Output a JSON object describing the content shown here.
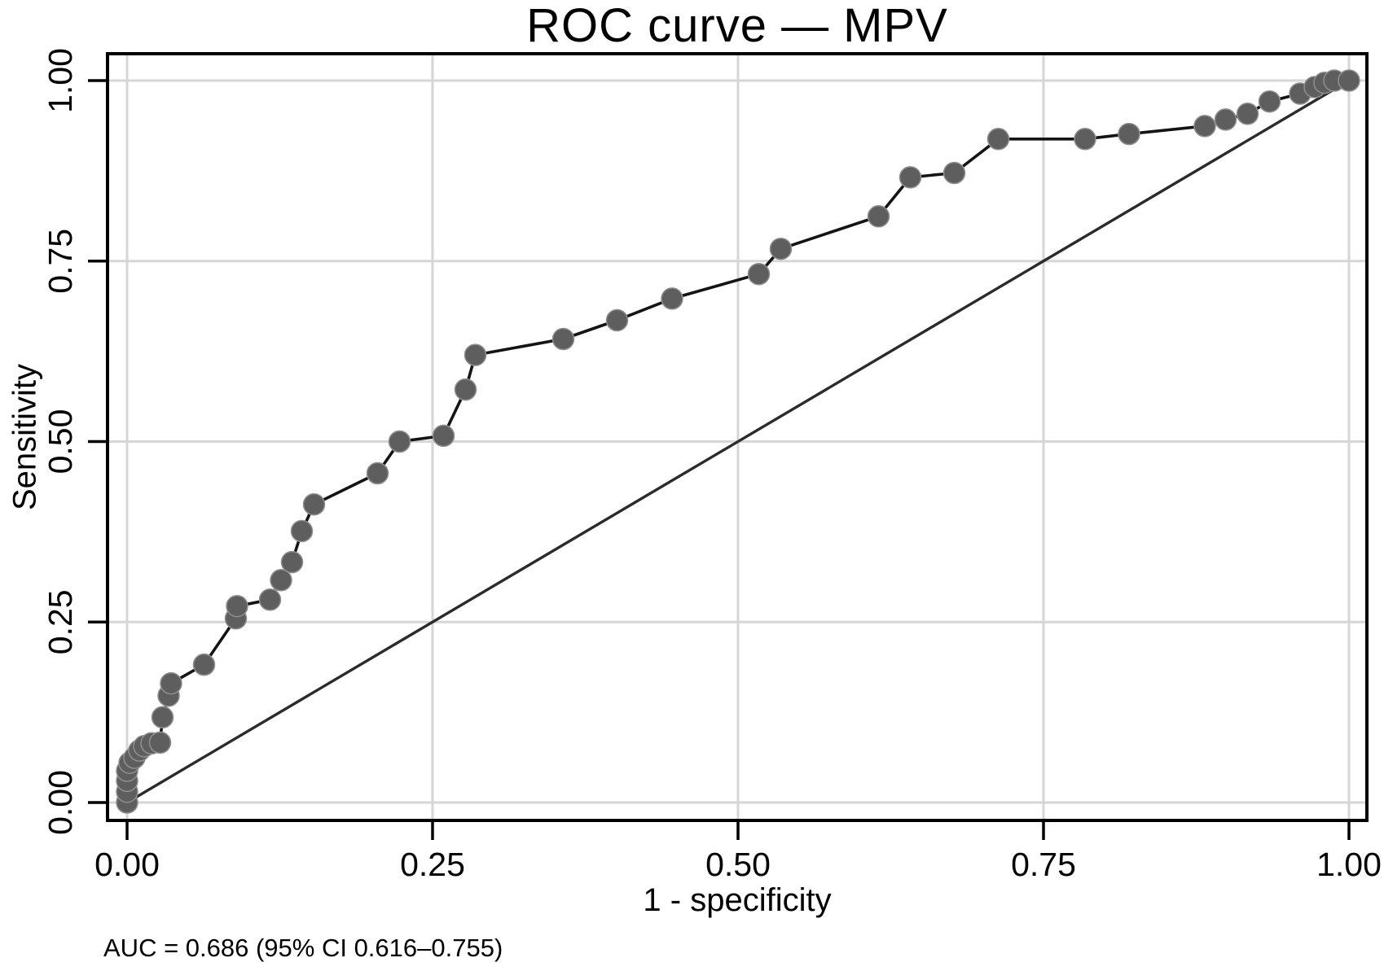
{
  "chart_data": {
    "type": "line",
    "title": "ROC curve — MPV",
    "xlabel": "1 - specificity",
    "ylabel": "Sensitivity",
    "annotation": "AUC = 0.686 (95% CI 0.616–0.755)",
    "auc": {
      "value": 0.686,
      "ci_lower": 0.616,
      "ci_upper": 0.755
    },
    "xlim": [
      0,
      1
    ],
    "ylim": [
      0,
      1
    ],
    "x_ticks": [
      "0.00",
      "0.25",
      "0.50",
      "0.75",
      "1.00"
    ],
    "y_ticks": [
      "0.00",
      "0.25",
      "0.50",
      "0.75",
      "1.00"
    ],
    "grid": true,
    "legend_position": "none",
    "colors": {
      "marker": "#5e5e5e",
      "marker_edge": "#8f8f8f",
      "roc_line": "#141414",
      "reference_line": "#2b2b2b",
      "grid": "#d6d6d6",
      "border": "#000000",
      "text": "#000000"
    },
    "series": [
      {
        "name": "ROC curve (MPV)",
        "markers": true,
        "line_width": 3.6,
        "points": [
          [
            0.0,
            0.0
          ],
          [
            0.0,
            0.015
          ],
          [
            0.0,
            0.03
          ],
          [
            0.0,
            0.044
          ],
          [
            0.002,
            0.055
          ],
          [
            0.006,
            0.062
          ],
          [
            0.01,
            0.072
          ],
          [
            0.014,
            0.078
          ],
          [
            0.02,
            0.082
          ],
          [
            0.027,
            0.083
          ],
          [
            0.029,
            0.118
          ],
          [
            0.034,
            0.148
          ],
          [
            0.036,
            0.165
          ],
          [
            0.063,
            0.191
          ],
          [
            0.089,
            0.255
          ],
          [
            0.09,
            0.272
          ],
          [
            0.117,
            0.281
          ],
          [
            0.126,
            0.308
          ],
          [
            0.135,
            0.333
          ],
          [
            0.143,
            0.376
          ],
          [
            0.153,
            0.413
          ],
          [
            0.205,
            0.456
          ],
          [
            0.223,
            0.5
          ],
          [
            0.259,
            0.508
          ],
          [
            0.277,
            0.572
          ],
          [
            0.285,
            0.62
          ],
          [
            0.357,
            0.642
          ],
          [
            0.401,
            0.668
          ],
          [
            0.446,
            0.698
          ],
          [
            0.517,
            0.732
          ],
          [
            0.535,
            0.767
          ],
          [
            0.615,
            0.812
          ],
          [
            0.641,
            0.866
          ],
          [
            0.677,
            0.872
          ],
          [
            0.713,
            0.919
          ],
          [
            0.784,
            0.919
          ],
          [
            0.82,
            0.926
          ],
          [
            0.882,
            0.937
          ],
          [
            0.899,
            0.946
          ],
          [
            0.917,
            0.954
          ],
          [
            0.935,
            0.971
          ],
          [
            0.96,
            0.982
          ],
          [
            0.972,
            0.991
          ],
          [
            0.98,
            0.997
          ],
          [
            0.988,
            1.0
          ],
          [
            1.0,
            1.0
          ]
        ]
      },
      {
        "name": "Reference diagonal",
        "markers": false,
        "line_width": 3.4,
        "points": [
          [
            0,
            0
          ],
          [
            1,
            1
          ]
        ]
      }
    ]
  }
}
